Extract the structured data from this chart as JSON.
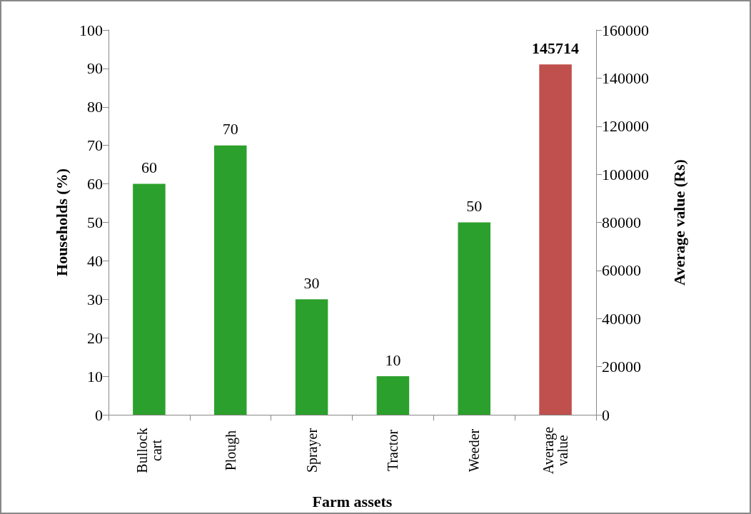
{
  "chart_data": {
    "type": "bar",
    "xlabel": "Farm assets",
    "ylabel": "Households (%)",
    "y2label": "Average value (Rs)",
    "categories": [
      "Bullock cart",
      "Plough",
      "Sprayer",
      "Tractor",
      "Weeder",
      "Average value"
    ],
    "series": [
      {
        "color": "#2ca02c",
        "values": [
          60,
          70,
          30,
          10,
          50,
          null
        ]
      },
      {
        "color": "#c0504d",
        "axis": "y2",
        "values": [
          null,
          null,
          null,
          null,
          null,
          145714
        ]
      }
    ],
    "ylim": [
      0,
      100
    ],
    "yticks": [
      0,
      10,
      20,
      30,
      40,
      50,
      60,
      70,
      80,
      90,
      100
    ],
    "y2lim": [
      0,
      160000
    ],
    "y2ticks": [
      0,
      20000,
      40000,
      60000,
      80000,
      100000,
      120000,
      140000,
      160000
    ],
    "data_labels": true,
    "grid": false
  }
}
